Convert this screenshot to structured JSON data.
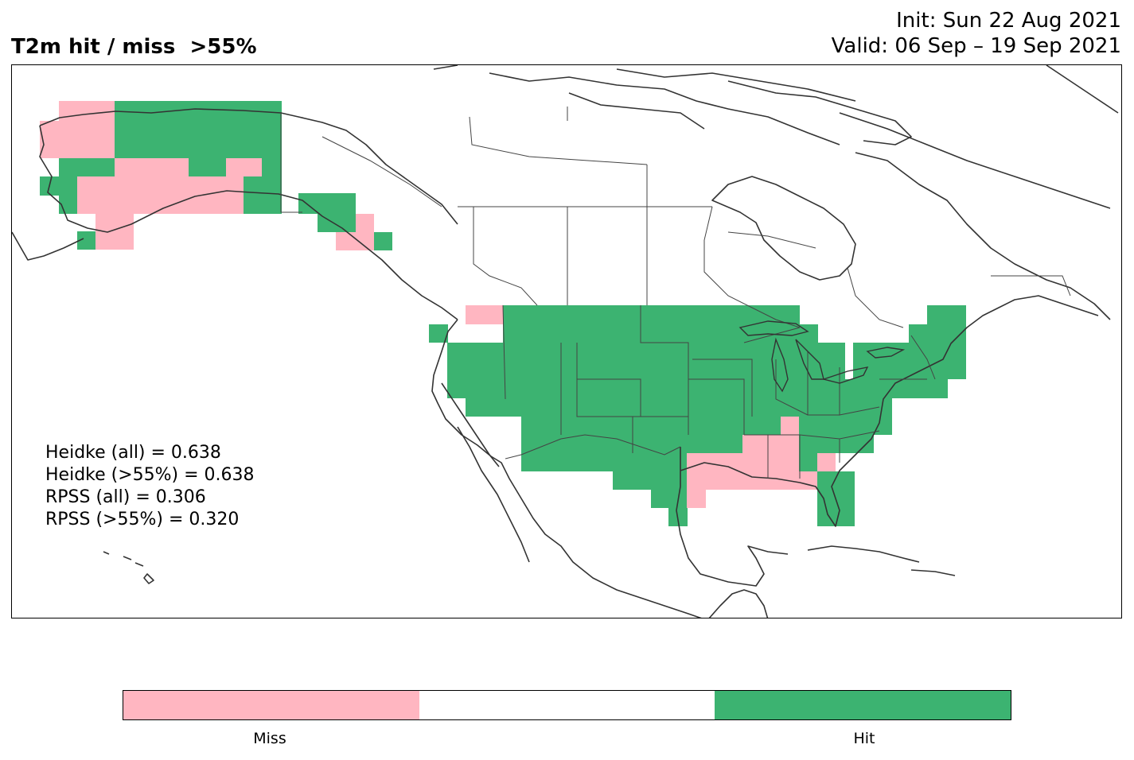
{
  "title": {
    "left": "T2m hit / miss  >55%",
    "init": "Init: Sun 22 Aug 2021",
    "valid": "Valid: 06 Sep – 19 Sep 2021"
  },
  "scores": {
    "heidke_all": "Heidke (all) = 0.638",
    "heidke_55": "Heidke (>55%) = 0.638",
    "rpss_all": "RPSS (all) = 0.306",
    "rpss_55": "RPSS (>55%) = 0.320"
  },
  "colorbar": {
    "segments": [
      {
        "name": "miss",
        "color": "#ffb6c1"
      },
      {
        "name": "none",
        "color": "#ffffff"
      },
      {
        "name": "hit",
        "color": "#3cb371"
      }
    ],
    "labels": {
      "miss": "Miss",
      "hit": "Hit"
    }
  },
  "colors": {
    "hit": "#3cb371",
    "miss": "#ffb6c1",
    "coast": "#333333"
  }
}
